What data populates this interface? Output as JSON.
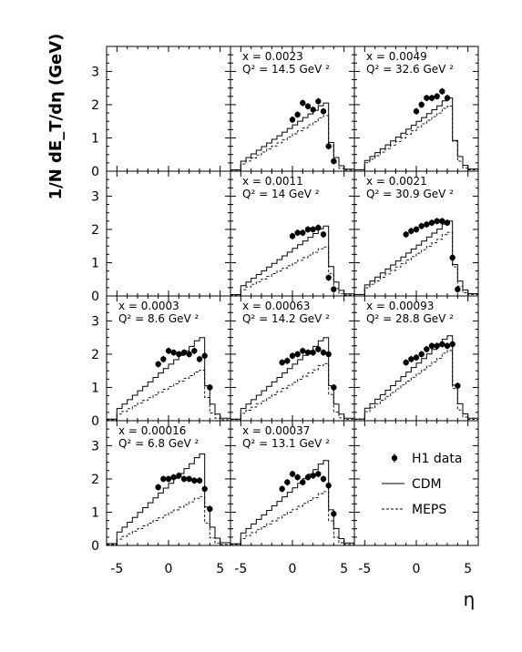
{
  "chart_data": {
    "type": "line",
    "ylabel": "1/N dE_T/dη (GeV)",
    "xlabel": "η",
    "xlim": [
      -6,
      6
    ],
    "ylim": [
      0,
      3.75
    ],
    "xticks": [
      -5,
      0,
      5
    ],
    "yticks": [
      0,
      1,
      2,
      3
    ],
    "grid": false,
    "series_names": [
      "H1 data",
      "CDM",
      "MEPS"
    ],
    "legend": {
      "location": "bottom-right panel",
      "items": [
        {
          "label": "H1 data",
          "style": "points"
        },
        {
          "label": "CDM",
          "style": "solid"
        },
        {
          "label": "MEPS",
          "style": "dashed"
        }
      ]
    },
    "panels": [
      {
        "row": 0,
        "col": 0,
        "empty": true
      },
      {
        "row": 0,
        "col": 1,
        "x_text": "x = 0.0023",
        "q2_text": "Q² = 14.5 GeV ²",
        "cdm_amp": 2.05,
        "meps_amp": 1.7,
        "data_eta": [
          0,
          0.5,
          1,
          1.5,
          2,
          2.5,
          3,
          3.5,
          4
        ],
        "data_val": [
          1.55,
          1.7,
          2.05,
          1.95,
          1.85,
          2.1,
          1.8,
          0.75,
          0.3
        ]
      },
      {
        "row": 0,
        "col": 2,
        "x_text": "x = 0.0049",
        "q2_text": "Q² = 32.6 GeV ²",
        "cdm_amp": 2.2,
        "meps_amp": 2.0,
        "data_eta": [
          0,
          0.5,
          1,
          1.5,
          2,
          2.5,
          3
        ],
        "data_val": [
          1.8,
          2.0,
          2.2,
          2.2,
          2.25,
          2.4,
          2.2
        ]
      },
      {
        "row": 1,
        "col": 0,
        "empty": true
      },
      {
        "row": 1,
        "col": 1,
        "x_text": "x = 0.0011",
        "q2_text": "Q² = 14 GeV ²",
        "cdm_amp": 2.1,
        "meps_amp": 1.5,
        "data_eta": [
          0,
          0.5,
          1,
          1.5,
          2,
          2.5,
          3,
          3.5,
          4
        ],
        "data_val": [
          1.8,
          1.9,
          1.9,
          2.0,
          2.0,
          2.05,
          1.85,
          0.55,
          0.2
        ]
      },
      {
        "row": 1,
        "col": 2,
        "x_text": "x = 0.0021",
        "q2_text": "Q² = 30.9 GeV ²",
        "cdm_amp": 2.25,
        "meps_amp": 1.95,
        "data_eta": [
          -1,
          -0.5,
          0,
          0.5,
          1,
          1.5,
          2,
          2.5,
          3,
          3.5,
          4
        ],
        "data_val": [
          1.85,
          1.95,
          2.0,
          2.1,
          2.15,
          2.2,
          2.25,
          2.25,
          2.2,
          1.15,
          0.2
        ]
      },
      {
        "row": 2,
        "col": 0,
        "x_text": "x = 0.0003",
        "q2_text": "Q² = 8.6 GeV ²",
        "cdm_amp": 2.5,
        "meps_amp": 1.55,
        "data_eta": [
          -1,
          -0.5,
          0,
          0.5,
          1,
          1.5,
          2,
          2.5,
          3,
          3.5,
          4
        ],
        "data_val": [
          1.7,
          1.85,
          2.1,
          2.05,
          2.0,
          2.05,
          2.0,
          2.1,
          1.85,
          1.95,
          1.0
        ]
      },
      {
        "row": 2,
        "col": 1,
        "x_text": "x = 0.00063",
        "q2_text": "Q² = 14.2 GeV ²",
        "cdm_amp": 2.5,
        "meps_amp": 1.75,
        "data_eta": [
          -1,
          -0.5,
          0,
          0.5,
          1,
          1.5,
          2,
          2.5,
          3,
          3.5,
          4
        ],
        "data_val": [
          1.75,
          1.8,
          1.95,
          2.0,
          2.1,
          2.05,
          2.05,
          2.15,
          2.05,
          2.0,
          1.0
        ]
      },
      {
        "row": 2,
        "col": 2,
        "x_text": "x = 0.00093",
        "q2_text": "Q² = 28.8 GeV ²",
        "cdm_amp": 2.55,
        "meps_amp": 2.15,
        "data_eta": [
          -1,
          -0.5,
          0,
          0.5,
          1,
          1.5,
          2,
          2.5,
          3,
          3.5,
          4
        ],
        "data_val": [
          1.75,
          1.85,
          1.9,
          2.0,
          2.15,
          2.25,
          2.25,
          2.3,
          2.25,
          2.3,
          1.05
        ]
      },
      {
        "row": 3,
        "col": 0,
        "x_text": "x = 0.00016",
        "q2_text": "Q² = 6.8 GeV ²",
        "cdm_amp": 2.75,
        "meps_amp": 1.5,
        "data_eta": [
          -1,
          -0.5,
          0,
          0.5,
          1,
          1.5,
          2,
          2.5,
          3,
          3.5,
          4
        ],
        "data_val": [
          1.75,
          2.0,
          2.0,
          2.05,
          2.1,
          2.0,
          2.0,
          1.95,
          1.95,
          1.7,
          1.1
        ]
      },
      {
        "row": 3,
        "col": 1,
        "x_text": "x = 0.00037",
        "q2_text": "Q² = 13.1 GeV ²",
        "cdm_amp": 2.55,
        "meps_amp": 1.65,
        "data_eta": [
          -1,
          -0.5,
          0,
          0.5,
          1,
          1.5,
          2,
          2.5,
          3,
          3.5,
          4
        ],
        "data_val": [
          1.7,
          1.9,
          2.15,
          2.05,
          1.9,
          2.05,
          2.1,
          2.15,
          2.0,
          1.8,
          0.95
        ]
      },
      {
        "row": 3,
        "col": 2,
        "legend": true
      }
    ]
  }
}
